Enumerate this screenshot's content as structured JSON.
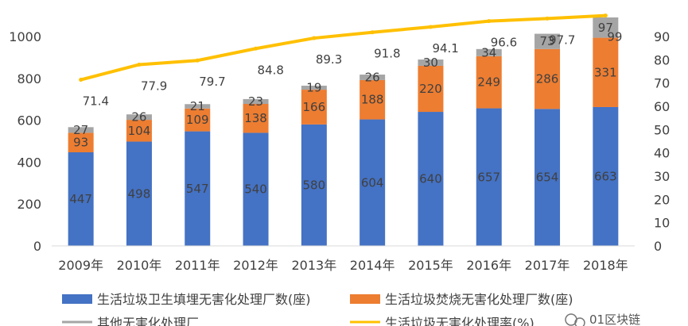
{
  "chart_data": {
    "type": "bar",
    "stacked": true,
    "categories": [
      "2009年",
      "2010年",
      "2011年",
      "2012年",
      "2013年",
      "2014年",
      "2015年",
      "2016年",
      "2017年",
      "2018年"
    ],
    "series": [
      {
        "name": "生活垃圾卫生填埋无害化处理厂数(座)",
        "type": "bar",
        "axis": "left",
        "color": "#4472C4",
        "values": [
          447,
          498,
          547,
          540,
          580,
          604,
          640,
          657,
          654,
          663
        ]
      },
      {
        "name": "生活垃圾焚烧无害化处理厂数(座)",
        "type": "bar",
        "axis": "left",
        "color": "#ED7D31",
        "values": [
          93,
          104,
          109,
          138,
          166,
          188,
          220,
          249,
          286,
          331
        ]
      },
      {
        "name": "其他无害化处理厂",
        "type": "bar",
        "axis": "left",
        "color": "#A5A5A5",
        "values": [
          27,
          26,
          21,
          23,
          19,
          26,
          30,
          34,
          73,
          97
        ]
      },
      {
        "name": "生活垃圾无害化处理率(%)",
        "type": "line",
        "axis": "right",
        "color": "#FFC000",
        "values": [
          71.4,
          77.9,
          79.7,
          84.8,
          89.3,
          91.8,
          94.1,
          96.6,
          97.7,
          99
        ]
      }
    ],
    "left_axis": {
      "ticks": [
        0,
        200,
        400,
        600,
        800,
        1000
      ],
      "range": [
        0,
        1100
      ]
    },
    "right_axis": {
      "ticks": [
        0,
        10,
        20,
        30,
        40,
        50,
        60,
        70,
        80,
        90
      ],
      "range": [
        0,
        100
      ]
    },
    "line_labels": [
      "71.4",
      "77.9",
      "79.7",
      "84.8",
      "89.3",
      "91.8",
      "94.1",
      "96.6",
      "97.7",
      "99"
    ],
    "grid": false,
    "legend": "bottom"
  },
  "watermark": {
    "icon": "wechat-icon",
    "text": "01区块链"
  }
}
